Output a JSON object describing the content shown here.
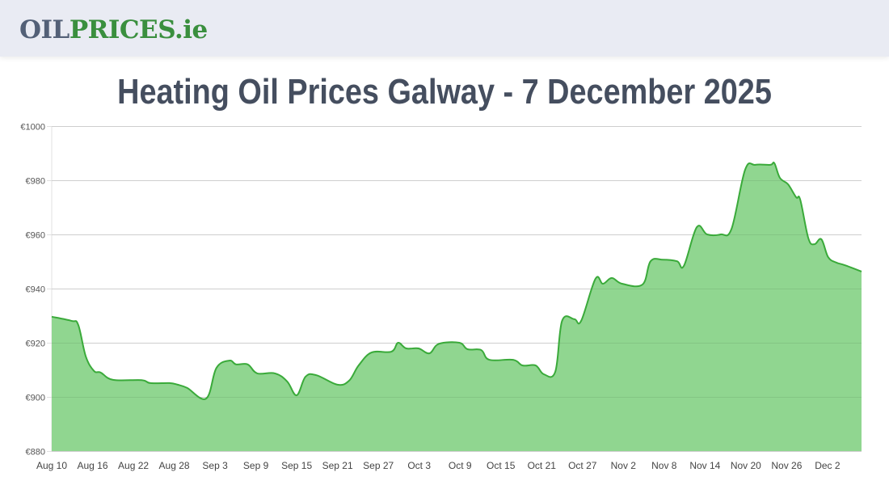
{
  "header": {
    "logo_part1": "OIL",
    "logo_part2": "PRICES.ie"
  },
  "page_title": "Heating Oil Prices Galway - 7 December 2025",
  "colors": {
    "line": "#3aaa3a",
    "fill": "#90d690",
    "grid": "#e0e0e0",
    "logo_gray": "#536077",
    "logo_green": "#3a8f3e",
    "title": "#454e5f"
  },
  "chart_data": {
    "type": "area",
    "title": "Heating Oil Prices Galway - 7 December 2025",
    "xlabel": "",
    "ylabel": "",
    "ylim": [
      880,
      1000
    ],
    "y_ticks": [
      880,
      900,
      920,
      940,
      960,
      980,
      1000
    ],
    "y_tick_labels": [
      "€880",
      "€900",
      "€920",
      "€940",
      "€960",
      "€980",
      "€1000"
    ],
    "x_tick_labels": [
      "Aug 10",
      "Aug 16",
      "Aug 22",
      "Aug 28",
      "Sep 3",
      "Sep 9",
      "Sep 15",
      "Sep 21",
      "Sep 27",
      "Oct 3",
      "Oct 9",
      "Oct 15",
      "Oct 21",
      "Oct 27",
      "Nov 2",
      "Nov 8",
      "Nov 14",
      "Nov 20",
      "Nov 26",
      "Dec 2"
    ],
    "x_range_days": [
      0,
      119
    ],
    "x_start_date": "Aug 10",
    "x_end_date": "Dec 7",
    "grid": true,
    "legend": "none",
    "series": [
      {
        "name": "Heating Oil Price (Galway)",
        "points": [
          [
            0,
            929.6
          ],
          [
            2.9,
            928.1
          ],
          [
            3.9,
            926.6
          ],
          [
            5.0,
            915.0
          ],
          [
            6.2,
            909.6
          ],
          [
            7.2,
            909.0
          ],
          [
            9.0,
            906.3
          ],
          [
            13.2,
            906.2
          ],
          [
            14.5,
            905.1
          ],
          [
            17.3,
            905.1
          ],
          [
            18.5,
            904.5
          ],
          [
            19.9,
            903.3
          ],
          [
            22.7,
            899.4
          ],
          [
            24.2,
            910.7
          ],
          [
            26.1,
            913.4
          ],
          [
            27.1,
            912.0
          ],
          [
            28.8,
            912.0
          ],
          [
            30.2,
            908.7
          ],
          [
            32.8,
            908.7
          ],
          [
            34.6,
            905.7
          ],
          [
            36.0,
            900.6
          ],
          [
            37.3,
            907.5
          ],
          [
            38.9,
            908.0
          ],
          [
            42.0,
            904.5
          ],
          [
            43.7,
            906.0
          ],
          [
            45.1,
            911.6
          ],
          [
            47.0,
            916.4
          ],
          [
            49.9,
            916.7
          ],
          [
            50.9,
            920.0
          ],
          [
            52.1,
            917.9
          ],
          [
            53.9,
            917.9
          ],
          [
            55.5,
            916.1
          ],
          [
            56.9,
            919.6
          ],
          [
            59.9,
            920.0
          ],
          [
            61.1,
            917.6
          ],
          [
            63.1,
            917.3
          ],
          [
            64.3,
            913.7
          ],
          [
            67.8,
            913.7
          ],
          [
            69.2,
            911.6
          ],
          [
            71.1,
            911.6
          ],
          [
            72.3,
            908.4
          ],
          [
            74.0,
            909.3
          ],
          [
            75.0,
            928.1
          ],
          [
            76.8,
            928.7
          ],
          [
            77.8,
            928.1
          ],
          [
            79.9,
            943.6
          ],
          [
            81.0,
            941.8
          ],
          [
            82.3,
            943.9
          ],
          [
            83.8,
            941.8
          ],
          [
            86.8,
            941.5
          ],
          [
            88.0,
            950.1
          ],
          [
            89.8,
            950.7
          ],
          [
            91.9,
            950.1
          ],
          [
            92.9,
            948.4
          ],
          [
            94.8,
            962.7
          ],
          [
            96.3,
            960.0
          ],
          [
            98.3,
            960.0
          ],
          [
            99.9,
            962.1
          ],
          [
            101.9,
            983.9
          ],
          [
            103.4,
            985.7
          ],
          [
            105.6,
            985.7
          ],
          [
            106.2,
            986.3
          ],
          [
            107.0,
            980.9
          ],
          [
            108.2,
            978.5
          ],
          [
            109.4,
            973.7
          ],
          [
            110.0,
            972.8
          ],
          [
            111.2,
            958.5
          ],
          [
            112.1,
            956.4
          ],
          [
            113.1,
            958.2
          ],
          [
            114.1,
            951.6
          ],
          [
            115.3,
            949.6
          ],
          [
            116.5,
            948.7
          ],
          [
            119.0,
            946.3
          ]
        ]
      }
    ]
  }
}
